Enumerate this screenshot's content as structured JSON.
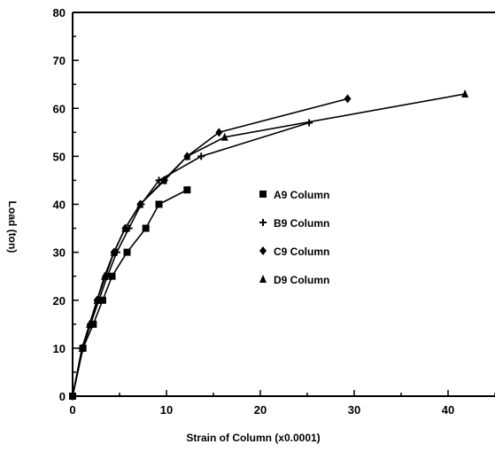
{
  "chart_data": {
    "type": "line",
    "title": "",
    "xlabel": "Strain of Column (x0.0001)",
    "ylabel": "Load (ton)",
    "xlim": [
      0,
      45
    ],
    "ylim": [
      0,
      80
    ],
    "xticks": [
      0,
      10,
      20,
      30,
      40
    ],
    "yticks": [
      0,
      10,
      20,
      30,
      40,
      50,
      60,
      70,
      80
    ],
    "grid": false,
    "legend_position": "center-right",
    "series": [
      {
        "name": "A9 Column",
        "marker": "square",
        "x": [
          0,
          1.1,
          2.2,
          3.2,
          4.2,
          5.8,
          7.8,
          9.2,
          12.2
        ],
        "y": [
          0,
          10,
          15,
          20,
          25,
          30,
          35,
          40,
          43
        ]
      },
      {
        "name": "B9 Column",
        "marker": "plus",
        "x": [
          0,
          1.0,
          1.9,
          2.8,
          3.7,
          4.7,
          6.0,
          7.3,
          9.2,
          13.7,
          25.2
        ],
        "y": [
          0,
          10,
          15,
          20,
          25,
          30,
          35,
          40,
          45,
          50,
          57
        ]
      },
      {
        "name": "C9 Column",
        "marker": "diamond",
        "x": [
          0,
          1.1,
          1.9,
          2.6,
          3.5,
          4.4,
          5.6,
          7.2,
          9.8,
          12.2,
          15.6,
          29.3
        ],
        "y": [
          0,
          10,
          15,
          20,
          25,
          30,
          35,
          40,
          45,
          50,
          55,
          62
        ]
      },
      {
        "name": "D9 Column",
        "marker": "triangle",
        "x": [
          0,
          1.0,
          1.8,
          2.6,
          3.4,
          4.4,
          5.6,
          7.2,
          9.7,
          12.2,
          16.2,
          41.8
        ],
        "y": [
          0,
          10,
          15,
          20,
          25,
          30,
          35,
          40,
          45,
          50,
          54,
          63
        ]
      }
    ]
  }
}
